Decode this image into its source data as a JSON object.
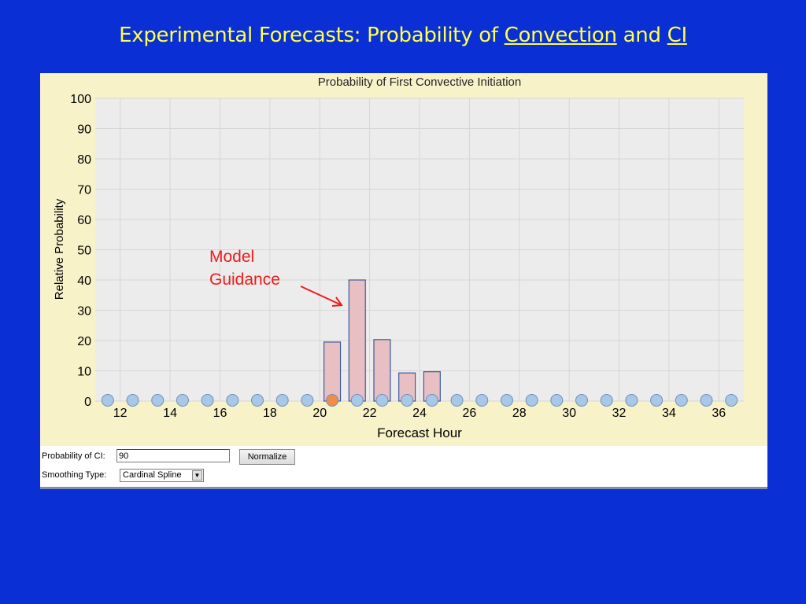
{
  "slide": {
    "title_prefix": "Experimental Forecasts:  Probability of ",
    "title_link1": "Convection",
    "title_mid": " and ",
    "title_link2": "CI"
  },
  "chart_data": {
    "type": "bar",
    "title": "Probability of First Convective Initiation",
    "xlabel": "Forecast Hour",
    "ylabel": "Relative Probability",
    "ylim": [
      0,
      100
    ],
    "xlim": [
      11,
      37
    ],
    "y_ticks": [
      0,
      10,
      20,
      30,
      40,
      50,
      60,
      70,
      80,
      90,
      100
    ],
    "x_ticks": [
      12,
      14,
      16,
      18,
      20,
      22,
      24,
      26,
      28,
      30,
      32,
      34,
      36
    ],
    "grid": true,
    "bars": [
      {
        "x": 20.5,
        "value": 19.5
      },
      {
        "x": 21.5,
        "value": 40
      },
      {
        "x": 22.5,
        "value": 20.3
      },
      {
        "x": 23.5,
        "value": 9.3
      },
      {
        "x": 24.5,
        "value": 9.7
      }
    ],
    "handles_x": [
      11.5,
      12.5,
      13.5,
      14.5,
      15.5,
      16.5,
      17.5,
      18.5,
      19.5,
      20.5,
      21.5,
      22.5,
      23.5,
      24.5,
      25.5,
      26.5,
      27.5,
      28.5,
      29.5,
      30.5,
      31.5,
      32.5,
      33.5,
      34.5,
      35.5,
      36.5
    ],
    "highlight_handle_x": 20.5,
    "colors": {
      "bar_fill": "#e8c0c4",
      "bar_stroke": "#3a5a9a",
      "handle_fill": "#a9c7e6",
      "handle_stroke": "#6d8fb8",
      "handle_highlight": "#f28c4a",
      "plot_bg": "#ececec",
      "panel_bg": "#f8f2c9"
    }
  },
  "annotation": {
    "line1": "Model",
    "line2": "Guidance"
  },
  "controls": {
    "ci_label": "Probability of CI:",
    "ci_value": "90",
    "normalize_label": "Normalize",
    "smoothing_label": "Smoothing Type:",
    "smoothing_value": "Cardinal Spline"
  }
}
